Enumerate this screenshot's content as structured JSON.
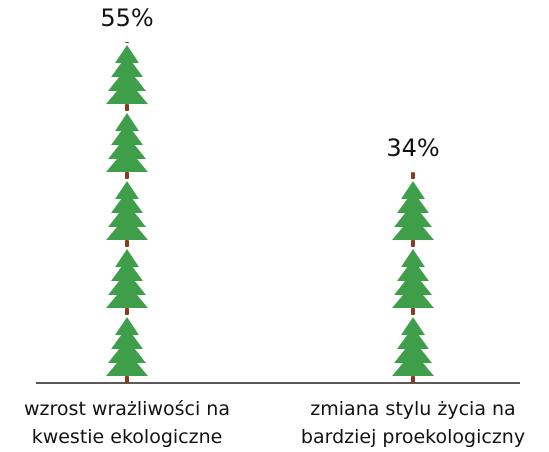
{
  "chart_data": {
    "type": "pictogram",
    "categories": [
      "wzrost wrażliwości na kwestie ekologiczne",
      "zmiana stylu życia na bardziej proekologiczny"
    ],
    "values": [
      55,
      34
    ],
    "value_labels": [
      "55%",
      "34%"
    ],
    "color": "#3f9e4a"
  }
}
